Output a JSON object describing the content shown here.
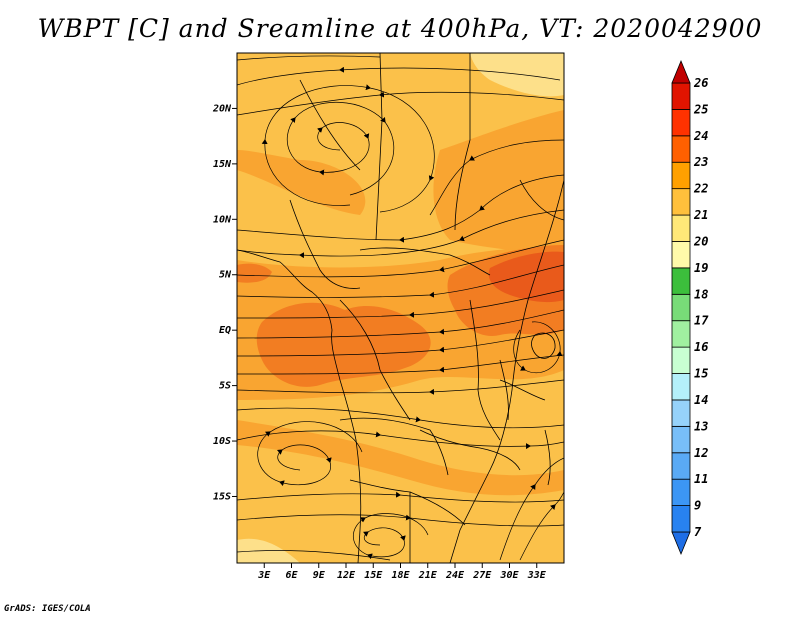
{
  "title": "WBPT [C] and Sreamline at 400hPa, VT: 2020042900",
  "footer": "GrADS: IGES/COLA",
  "map": {
    "lon_range": [
      0,
      36
    ],
    "lat_range": [
      -21,
      25
    ],
    "lon_ticks": [
      {
        "value": 3,
        "label": "3E"
      },
      {
        "value": 6,
        "label": "6E"
      },
      {
        "value": 9,
        "label": "9E"
      },
      {
        "value": 12,
        "label": "12E"
      },
      {
        "value": 15,
        "label": "15E"
      },
      {
        "value": 18,
        "label": "18E"
      },
      {
        "value": 21,
        "label": "21E"
      },
      {
        "value": 24,
        "label": "24E"
      },
      {
        "value": 27,
        "label": "27E"
      },
      {
        "value": 30,
        "label": "30E"
      },
      {
        "value": 33,
        "label": "33E"
      }
    ],
    "lat_ticks": [
      {
        "value": 20,
        "label": "20N"
      },
      {
        "value": 15,
        "label": "15N"
      },
      {
        "value": 10,
        "label": "10N"
      },
      {
        "value": 5,
        "label": "5N"
      },
      {
        "value": 0,
        "label": "EQ"
      },
      {
        "value": -5,
        "label": "5S"
      },
      {
        "value": -10,
        "label": "10S"
      },
      {
        "value": -15,
        "label": "15S"
      }
    ]
  },
  "colorbar": {
    "labels": [
      "7",
      "9",
      "11",
      "12",
      "13",
      "14",
      "15",
      "16",
      "17",
      "18",
      "19",
      "20",
      "21",
      "22",
      "23",
      "24",
      "25",
      "26"
    ],
    "colors": [
      "#1e6ee6",
      "#2882f0",
      "#3c96f5",
      "#5aaaf5",
      "#78bef8",
      "#96d2fa",
      "#b4f0fa",
      "#c8ffd2",
      "#a0f0a0",
      "#78dc78",
      "#3cbe3c",
      "#fffaaa",
      "#ffe878",
      "#ffc03c",
      "#ffa000",
      "#ff6000",
      "#ff3200",
      "#e11400",
      "#c00000"
    ]
  },
  "colors": {
    "temp_20_21": "#fbc14a",
    "temp_21_22": "#f9a531",
    "temp_22_23": "#f27d22",
    "temp_23_24": "#e95a1b",
    "temp_19_20": "#fde08a",
    "streamline": "#000000",
    "border": "#000000"
  }
}
